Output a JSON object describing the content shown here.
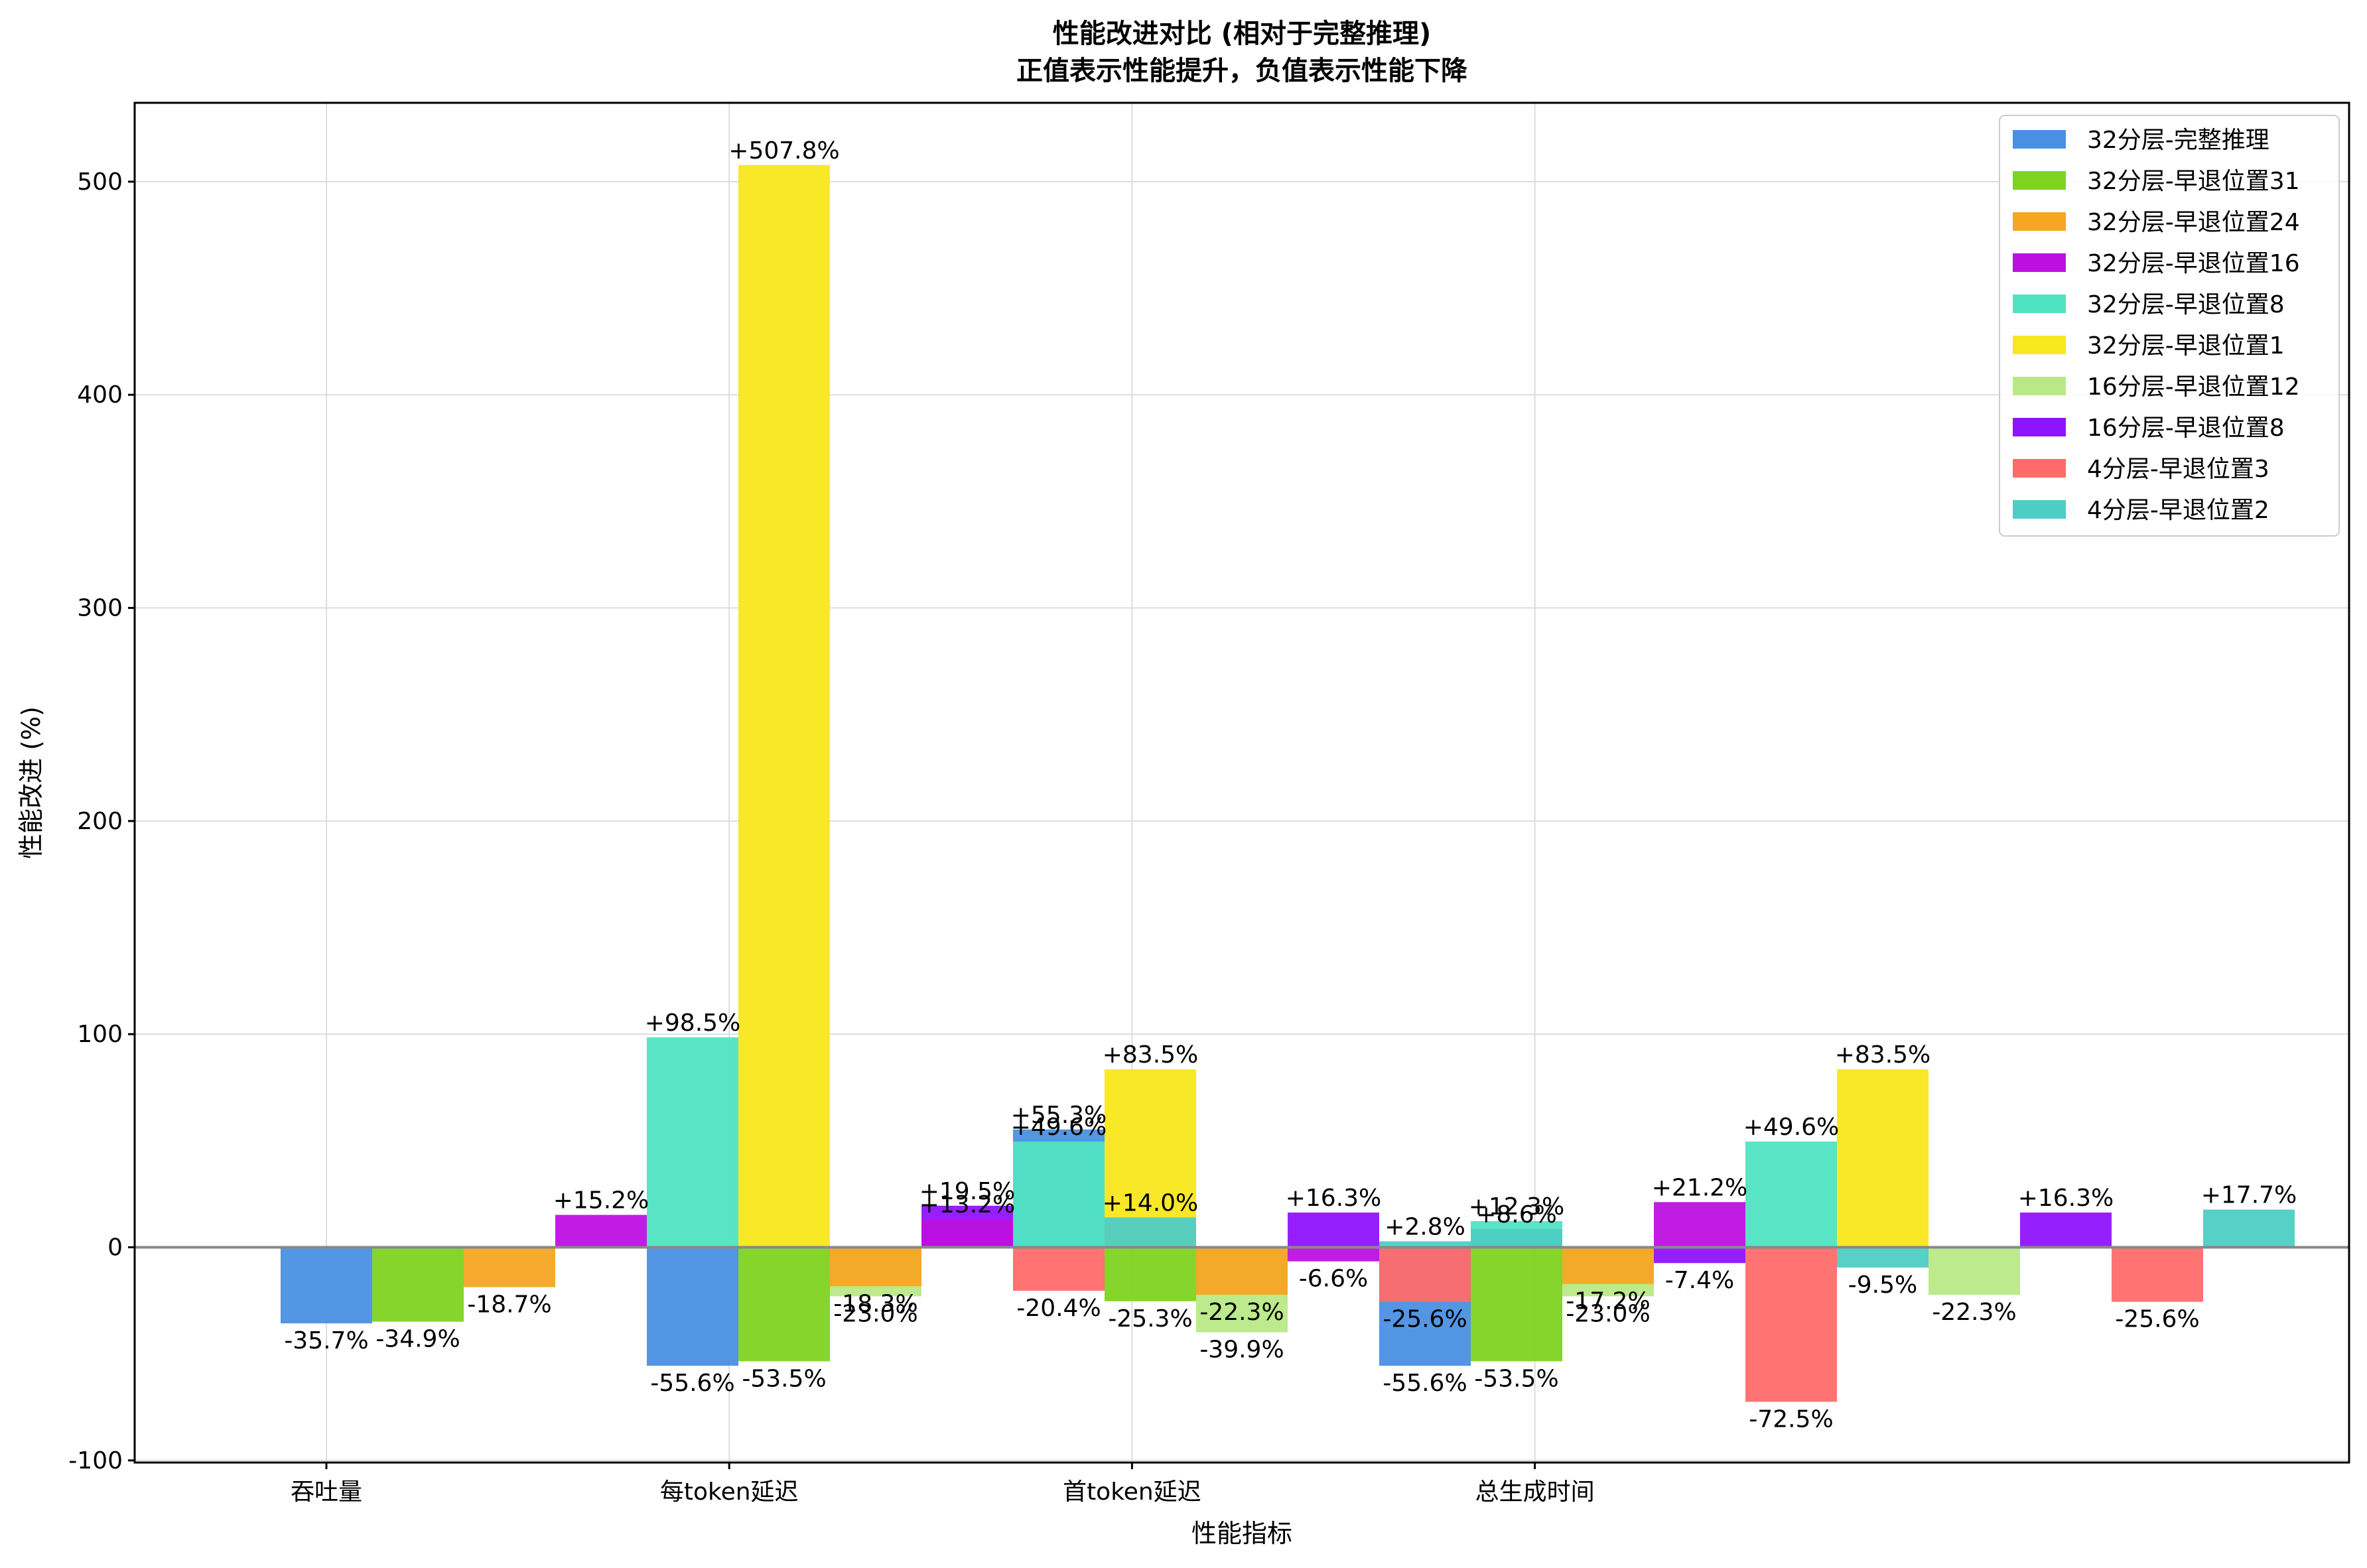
{
  "chart_data": {
    "type": "bar",
    "title": "性能改进对比 (相对于完整推理)",
    "subtitle": "正值表示性能提升，负值表示性能下降",
    "xlabel": "性能指标",
    "ylabel": "性能改进 (%)",
    "categories": [
      "吞吐量",
      "每token延迟",
      "首token延迟",
      "总生成时间"
    ],
    "yticks": [
      -100,
      0,
      100,
      200,
      300,
      400,
      500
    ],
    "ylim": [
      -101,
      537
    ],
    "grid": true,
    "legend_position": "top-right",
    "series": [
      {
        "name": "32分层-完整推理",
        "color": "#4A90E2"
      },
      {
        "name": "32分层-早退位置31",
        "color": "#7ED321"
      },
      {
        "name": "32分层-早退位置24",
        "color": "#F5A623"
      },
      {
        "name": "32分层-早退位置16",
        "color": "#BD10E0"
      },
      {
        "name": "32分层-早退位置8",
        "color": "#50E3C2"
      },
      {
        "name": "32分层-早退位置1",
        "color": "#F8E71C"
      },
      {
        "name": "16分层-早退位置12",
        "color": "#B8E986"
      },
      {
        "name": "16分层-早退位置8",
        "color": "#9013FE"
      },
      {
        "name": "4分层-早退位置3",
        "color": "#FF6B6B"
      },
      {
        "name": "4分层-早退位置2",
        "color": "#4ECDC4"
      }
    ],
    "bars": [
      {
        "x": 0.0,
        "value": -35.7,
        "label": "-35.7%",
        "s": 0
      },
      {
        "x": 0.25,
        "value": -34.9,
        "label": "-34.9%",
        "s": 1
      },
      {
        "x": 0.5,
        "value": -18.7,
        "label": "-18.7%",
        "s": 2
      },
      {
        "x": 0.75,
        "value": 15.2,
        "label": "+15.2%",
        "s": 3
      },
      {
        "x": 1.0,
        "value": 98.5,
        "label": "+98.5%",
        "s": 4
      },
      {
        "x": 1.0,
        "value": -55.6,
        "label": "-55.6%",
        "s": 0
      },
      {
        "x": 1.25,
        "value": 507.8,
        "label": "+507.8%",
        "s": 5
      },
      {
        "x": 1.25,
        "value": -53.5,
        "label": "-53.5%",
        "s": 1
      },
      {
        "x": 1.5,
        "value": -23.0,
        "label": "-23.0%",
        "s": 6
      },
      {
        "x": 1.5,
        "value": -18.3,
        "label": "-18.3%",
        "s": 2
      },
      {
        "x": 1.75,
        "value": 19.5,
        "label": "+19.5%",
        "s": 7
      },
      {
        "x": 1.75,
        "value": 13.2,
        "label": "+13.2%",
        "s": 3
      },
      {
        "x": 2.0,
        "value": 55.3,
        "label": "+55.3%",
        "s": 0
      },
      {
        "x": 2.0,
        "value": 49.6,
        "label": "+49.6%",
        "s": 4
      },
      {
        "x": 2.0,
        "value": -20.4,
        "label": "-20.4%",
        "s": 8
      },
      {
        "x": 2.25,
        "value": 83.5,
        "label": "+83.5%",
        "s": 5
      },
      {
        "x": 2.25,
        "value": 14.0,
        "label": "+14.0%",
        "s": 9
      },
      {
        "x": 2.25,
        "value": -25.3,
        "label": "-25.3%",
        "s": 1
      },
      {
        "x": 2.5,
        "value": -39.9,
        "label": "-39.9%",
        "s": 6
      },
      {
        "x": 2.5,
        "value": -22.3,
        "label": "-22.3%",
        "s": 2
      },
      {
        "x": 2.75,
        "value": 16.3,
        "label": "+16.3%",
        "s": 7
      },
      {
        "x": 2.75,
        "value": -6.6,
        "label": "-6.6%",
        "s": 3
      },
      {
        "x": 3.0,
        "value": 2.8,
        "label": "+2.8%",
        "s": 9
      },
      {
        "x": 3.0,
        "value": -55.6,
        "label": "-55.6%",
        "s": 0
      },
      {
        "x": 3.0,
        "value": -25.6,
        "label": "-25.6%",
        "s": 8
      },
      {
        "x": 3.25,
        "value": 12.3,
        "label": "+12.3%",
        "s": 4
      },
      {
        "x": 3.25,
        "value": 8.6,
        "label": "+8.6%",
        "s": 9
      },
      {
        "x": 3.25,
        "value": -53.5,
        "label": "-53.5%",
        "s": 1
      },
      {
        "x": 3.5,
        "value": -23.0,
        "label": "-23.0%",
        "s": 6
      },
      {
        "x": 3.5,
        "value": -17.2,
        "label": "-17.2%",
        "s": 2
      },
      {
        "x": 3.75,
        "value": 21.2,
        "label": "+21.2%",
        "s": 3
      },
      {
        "x": 3.75,
        "value": -7.4,
        "label": "-7.4%",
        "s": 7
      },
      {
        "x": 4.0,
        "value": 49.6,
        "label": "+49.6%",
        "s": 4
      },
      {
        "x": 4.0,
        "value": -72.5,
        "label": "-72.5%",
        "s": 8
      },
      {
        "x": 4.25,
        "value": 83.5,
        "label": "+83.5%",
        "s": 5
      },
      {
        "x": 4.25,
        "value": -9.5,
        "label": "-9.5%",
        "s": 9
      },
      {
        "x": 4.5,
        "value": -22.3,
        "label": "-22.3%",
        "s": 6
      },
      {
        "x": 4.75,
        "value": 16.3,
        "label": "+16.3%",
        "s": 7
      },
      {
        "x": 5.0,
        "value": -25.6,
        "label": "-25.6%",
        "s": 8
      },
      {
        "x": 5.25,
        "value": 17.7,
        "label": "+17.7%",
        "s": 9
      }
    ]
  }
}
